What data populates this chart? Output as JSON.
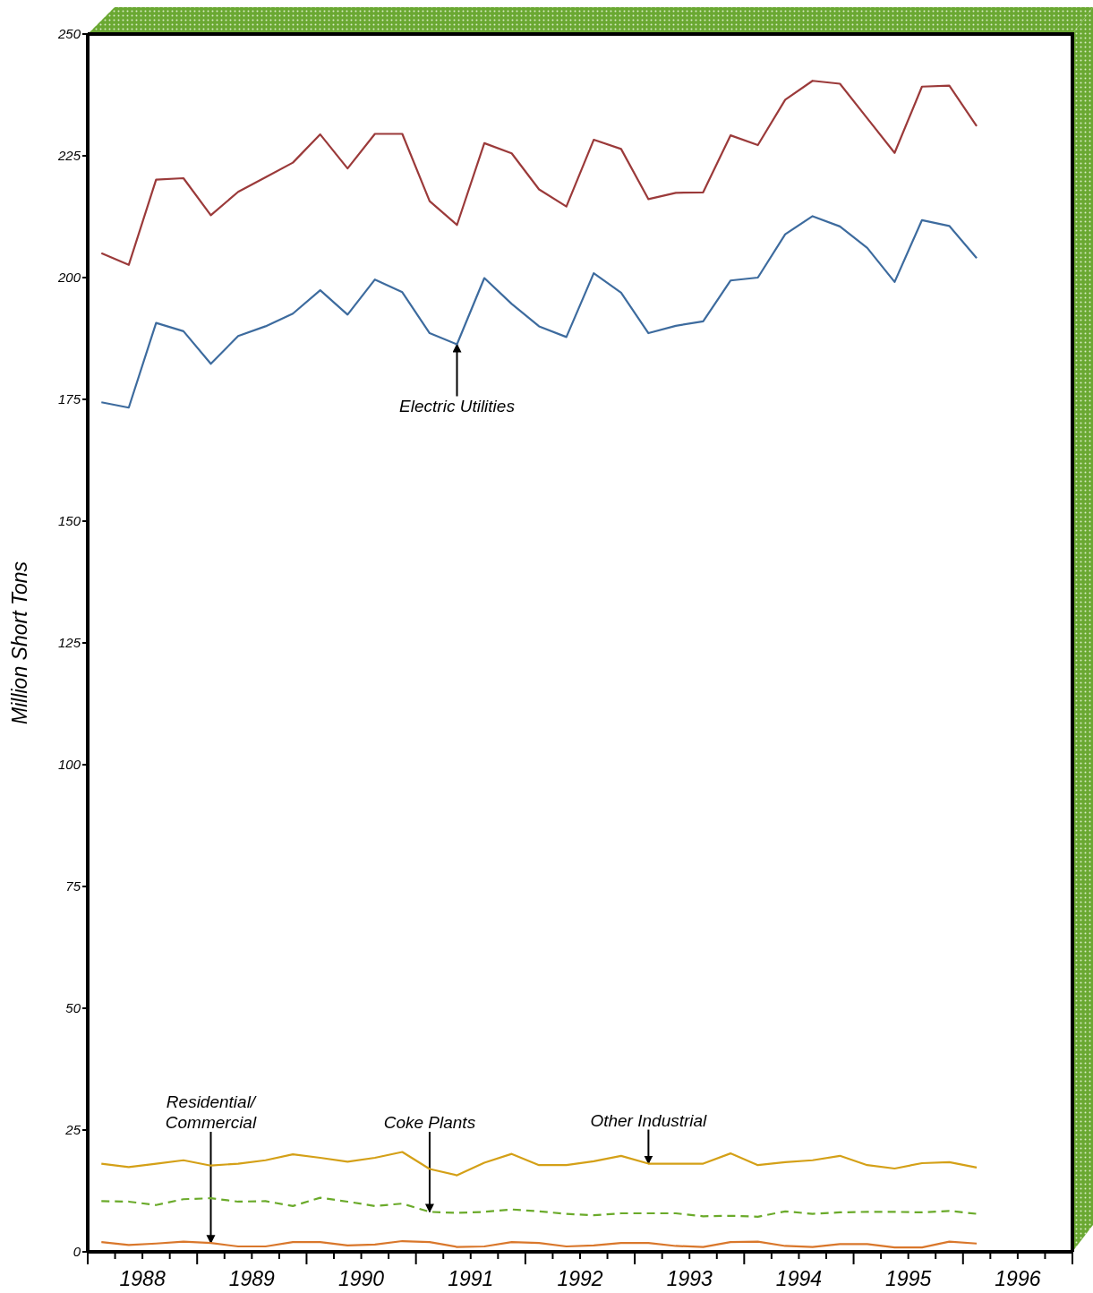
{
  "chart_data": {
    "type": "line",
    "ylabel": "Million Short Tons",
    "x": [
      1988.125,
      1988.375,
      1988.625,
      1988.875,
      1989.125,
      1989.375,
      1989.625,
      1989.875,
      1990.125,
      1990.375,
      1990.625,
      1990.875,
      1991.125,
      1991.375,
      1991.625,
      1991.875,
      1992.125,
      1992.375,
      1992.625,
      1992.875,
      1993.125,
      1993.375,
      1993.625,
      1993.875,
      1994.125,
      1994.375,
      1994.625,
      1994.875,
      1995.125,
      1995.375,
      1995.625,
      1995.875,
      1996.125
    ],
    "series": [
      {
        "color": "#9b3a3a",
        "values": [
          205.0,
          202.6,
          220.1,
          220.4,
          212.8,
          217.6,
          220.6,
          223.6,
          229.4,
          222.4,
          229.5,
          229.5,
          215.7,
          210.8,
          227.6,
          225.5,
          218.1,
          214.6,
          228.3,
          226.4,
          216.1,
          217.4,
          217.5,
          229.2,
          227.2,
          236.5,
          240.4,
          239.8,
          232.7,
          225.6,
          239.2,
          239.4,
          231.1
        ]
      },
      {
        "color": "#3d6b9e",
        "values": [
          174.4,
          173.3,
          190.7,
          189.0,
          182.3,
          188.0,
          190.0,
          192.6,
          197.4,
          192.4,
          199.6,
          197.0,
          188.6,
          186.3,
          199.9,
          194.6,
          190.0,
          187.8,
          200.9,
          196.9,
          188.6,
          190.1,
          191.0,
          199.4,
          200.0,
          208.9,
          212.6,
          210.5,
          206.1,
          199.1,
          211.8,
          210.6,
          204.0
        ]
      },
      {
        "color": "#d4a017",
        "values": [
          18.1,
          17.4,
          18.1,
          18.8,
          17.7,
          18.1,
          18.8,
          20.0,
          19.3,
          18.5,
          19.3,
          20.5,
          17.0,
          15.7,
          18.3,
          20.1,
          17.8,
          17.8,
          18.6,
          19.7,
          18.1,
          18.1,
          18.1,
          20.2,
          17.8,
          18.4,
          18.8,
          19.7,
          17.8,
          17.1,
          18.2,
          18.4,
          17.3
        ]
      },
      {
        "color": "#6aaa2a",
        "line_style": "dashed",
        "values": [
          10.4,
          10.3,
          9.6,
          10.8,
          11.0,
          10.3,
          10.4,
          9.4,
          11.1,
          10.3,
          9.4,
          9.9,
          8.2,
          8.0,
          8.2,
          8.7,
          8.3,
          7.8,
          7.5,
          7.9,
          7.9,
          7.9,
          7.3,
          7.4,
          7.2,
          8.3,
          7.8,
          8.1,
          8.2,
          8.2,
          8.1,
          8.4,
          7.8
        ]
      },
      {
        "color": "#d9772b",
        "values": [
          2.0,
          1.4,
          1.7,
          2.1,
          1.8,
          1.1,
          1.1,
          2.0,
          2.0,
          1.3,
          1.5,
          2.2,
          2.0,
          1.0,
          1.1,
          2.0,
          1.8,
          1.1,
          1.3,
          1.8,
          1.8,
          1.2,
          1.0,
          2.0,
          2.1,
          1.2,
          1.0,
          1.6,
          1.6,
          0.9,
          0.9,
          2.1,
          1.7
        ]
      }
    ],
    "xlim": [
      1988,
      1997
    ],
    "xticks": [
      {
        "value": 1988,
        "label": null
      },
      {
        "value": 1988.25,
        "label": null
      },
      {
        "value": 1988.5,
        "label": "1988"
      },
      {
        "value": 1988.75,
        "label": null
      },
      {
        "value": 1989,
        "label": null
      },
      {
        "value": 1989.25,
        "label": null
      },
      {
        "value": 1989.5,
        "label": "1989"
      },
      {
        "value": 1989.75,
        "label": null
      },
      {
        "value": 1990,
        "label": null
      },
      {
        "value": 1990.25,
        "label": null
      },
      {
        "value": 1990.5,
        "label": "1990"
      },
      {
        "value": 1990.75,
        "label": null
      },
      {
        "value": 1991,
        "label": null
      },
      {
        "value": 1991.25,
        "label": null
      },
      {
        "value": 1991.5,
        "label": "1991"
      },
      {
        "value": 1991.75,
        "label": null
      },
      {
        "value": 1992,
        "label": null
      },
      {
        "value": 1992.25,
        "label": null
      },
      {
        "value": 1992.5,
        "label": "1992"
      },
      {
        "value": 1992.75,
        "label": null
      },
      {
        "value": 1993,
        "label": null
      },
      {
        "value": 1993.25,
        "label": null
      },
      {
        "value": 1993.5,
        "label": "1993"
      },
      {
        "value": 1993.75,
        "label": null
      },
      {
        "value": 1994,
        "label": null
      },
      {
        "value": 1994.25,
        "label": null
      },
      {
        "value": 1994.5,
        "label": "1994"
      },
      {
        "value": 1994.75,
        "label": null
      },
      {
        "value": 1995,
        "label": null
      },
      {
        "value": 1995.25,
        "label": null
      },
      {
        "value": 1995.5,
        "label": "1995"
      },
      {
        "value": 1995.75,
        "label": null
      },
      {
        "value": 1996,
        "label": null
      },
      {
        "value": 1996.25,
        "label": null
      },
      {
        "value": 1996.5,
        "label": "1996"
      },
      {
        "value": 1996.75,
        "label": null
      },
      {
        "value": 1997,
        "label": null
      }
    ],
    "ylim": [
      0,
      250
    ],
    "yticks": [
      0,
      25,
      50,
      75,
      100,
      125,
      150,
      175,
      200,
      225,
      250
    ],
    "annotations": [
      {
        "text": "Electric Utilities",
        "x": 1991.375,
        "y": 186.3
      },
      {
        "text": "Residential/\nCommercial",
        "x": 1989.125,
        "y": 1.8
      },
      {
        "text": "Coke Plants",
        "x": 1991.125,
        "y": 8.2
      },
      {
        "text": "Other Industrial",
        "x": 1993.125,
        "y": 18.1
      }
    ]
  }
}
